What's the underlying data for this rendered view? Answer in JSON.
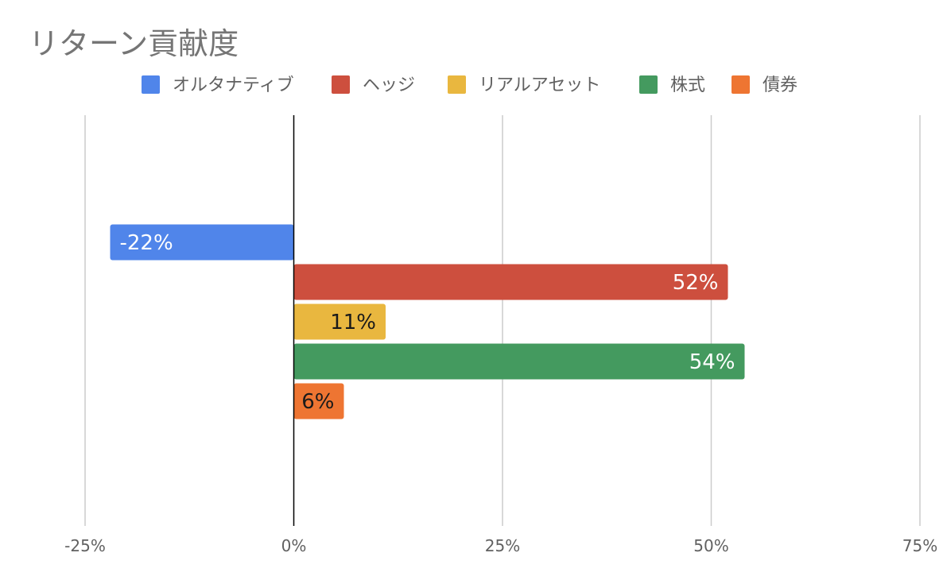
{
  "chart_data": {
    "type": "bar",
    "orientation": "horizontal",
    "title": "リターン貢献度",
    "xlim": [
      -25,
      75
    ],
    "x_ticks": [
      -25,
      0,
      25,
      50,
      75
    ],
    "x_tick_labels": [
      "-25%",
      "0%",
      "25%",
      "50%",
      "75%"
    ],
    "grid": true,
    "legend_position": "top",
    "series": [
      {
        "name": "オルタナティブ",
        "value": -22,
        "label": "-22%",
        "color": "#5085ea",
        "label_color": "#ffffff"
      },
      {
        "name": "ヘッジ",
        "value": 52,
        "label": "52%",
        "color": "#cd4f3e",
        "label_color": "#ffffff"
      },
      {
        "name": "リアルアセット",
        "value": 11,
        "label": "11%",
        "color": "#e9b73f",
        "label_color": "#1a1a1a"
      },
      {
        "name": "株式",
        "value": 54,
        "label": "54%",
        "color": "#449a5f",
        "label_color": "#ffffff"
      },
      {
        "name": "債券",
        "value": 6,
        "label": "6%",
        "color": "#ee7532",
        "label_color": "#1a1a1a"
      }
    ]
  }
}
